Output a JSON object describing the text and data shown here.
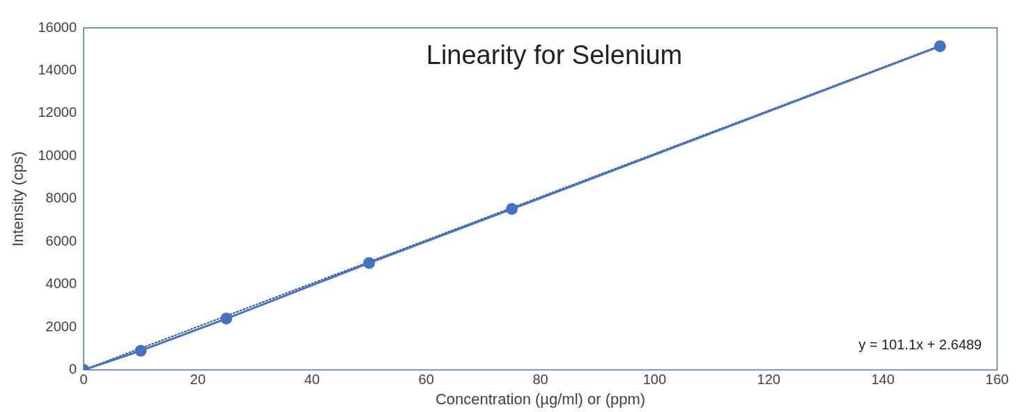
{
  "chart_data": {
    "type": "line",
    "title": "Linearity for Selenium",
    "xlabel": "Concentration (µg/ml) or (ppm)",
    "ylabel": "Intensity (cps)",
    "x": [
      0,
      10,
      25,
      50,
      75,
      150
    ],
    "series": [
      {
        "color": "#4472c4",
        "values": [
          0,
          900,
          2400,
          5000,
          7530,
          15140
        ]
      },
      {
        "line_style": "dotted",
        "marker": "none",
        "color": "#2f5597",
        "x": [
          0,
          150
        ],
        "values": [
          3,
          15168
        ]
      }
    ],
    "xlim": [
      0,
      160
    ],
    "xticks": [
      0,
      20,
      40,
      60,
      80,
      100,
      120,
      140,
      160
    ],
    "ylim": [
      0,
      16000
    ],
    "yticks": [
      0,
      2000,
      4000,
      6000,
      8000,
      10000,
      12000,
      14000,
      16000
    ],
    "annotations": [
      "y = 101.1x + 2.6489"
    ],
    "grid": false,
    "legend": false,
    "marker": "circle",
    "line_style": "solid"
  }
}
